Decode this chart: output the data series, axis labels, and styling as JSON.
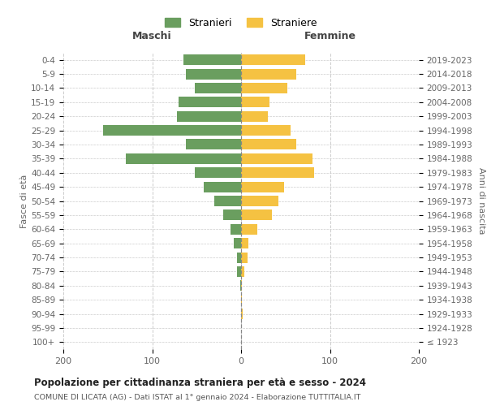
{
  "age_groups": [
    "100+",
    "95-99",
    "90-94",
    "85-89",
    "80-84",
    "75-79",
    "70-74",
    "65-69",
    "60-64",
    "55-59",
    "50-54",
    "45-49",
    "40-44",
    "35-39",
    "30-34",
    "25-29",
    "20-24",
    "15-19",
    "10-14",
    "5-9",
    "0-4"
  ],
  "birth_years": [
    "≤ 1923",
    "1924-1928",
    "1929-1933",
    "1934-1938",
    "1939-1943",
    "1944-1948",
    "1949-1953",
    "1954-1958",
    "1959-1963",
    "1964-1968",
    "1969-1973",
    "1974-1978",
    "1979-1983",
    "1984-1988",
    "1989-1993",
    "1994-1998",
    "1999-2003",
    "2004-2008",
    "2009-2013",
    "2014-2018",
    "2019-2023"
  ],
  "maschi": [
    0,
    0,
    0,
    0,
    1,
    5,
    5,
    8,
    12,
    20,
    30,
    42,
    52,
    130,
    62,
    155,
    72,
    70,
    52,
    62,
    65
  ],
  "femmine": [
    0,
    0,
    2,
    1,
    1,
    4,
    7,
    8,
    18,
    35,
    42,
    48,
    82,
    80,
    62,
    56,
    30,
    32,
    52,
    62,
    72
  ],
  "maschi_color": "#6a9e5f",
  "femmine_color": "#f5c242",
  "background_color": "#ffffff",
  "grid_color": "#cccccc",
  "title": "Popolazione per cittadinanza straniera per età e sesso - 2024",
  "subtitle": "COMUNE DI LICATA (AG) - Dati ISTAT al 1° gennaio 2024 - Elaborazione TUTTITALIA.IT",
  "xlabel_left": "Maschi",
  "xlabel_right": "Femmine",
  "ylabel_left": "Fasce di età",
  "ylabel_right": "Anni di nascita",
  "legend_maschi": "Stranieri",
  "legend_femmine": "Straniere",
  "xlim": 200
}
